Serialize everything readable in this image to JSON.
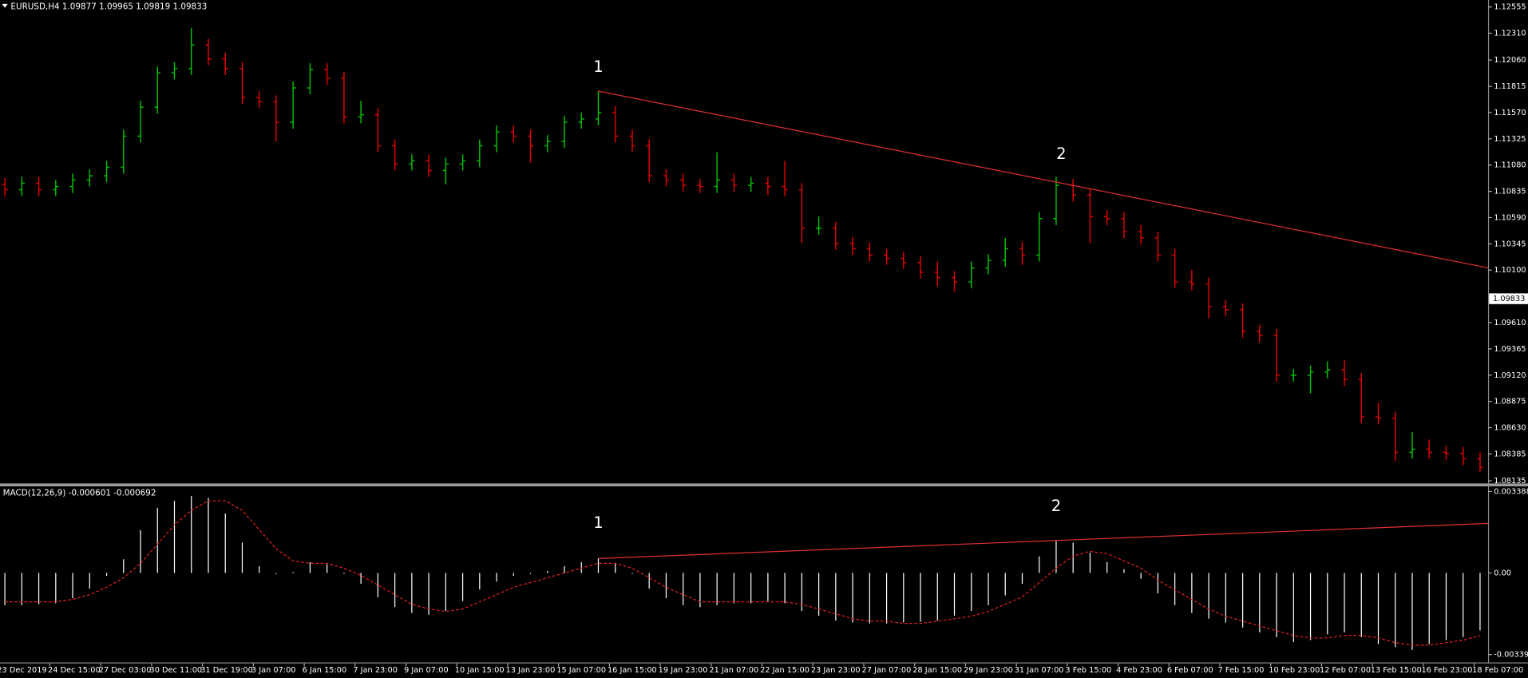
{
  "chart_data": [
    {
      "type": "ohlc",
      "title": "EURUSD,H4  1.09877 1.09965 1.09819 1.09833",
      "categories": [
        "23 Dec 2019",
        null,
        null,
        "24 Dec 15:00",
        null,
        null,
        "27 Dec 03:00",
        null,
        null,
        "30 Dec 11:00",
        null,
        null,
        "31 Dec 19:00",
        null,
        null,
        "3 Jan 07:00",
        null,
        null,
        "6 Jan 15:00",
        null,
        null,
        "7 Jan 23:00",
        null,
        null,
        "9 Jan 07:00",
        null,
        null,
        "10 Jan 15:00",
        null,
        null,
        "13 Jan 23:00",
        null,
        null,
        "15 Jan 07:00",
        null,
        null,
        "16 Jan 15:00",
        null,
        null,
        "19 Jan 23:00",
        null,
        null,
        "21 Jan 07:00",
        null,
        null,
        "22 Jan 15:00",
        null,
        null,
        "23 Jan 23:00",
        null,
        null,
        "27 Jan 07:00",
        null,
        null,
        "28 Jan 15:00",
        null,
        null,
        "29 Jan 23:00",
        null,
        null,
        "31 Jan 07:00",
        null,
        null,
        "3 Feb 15:00",
        null,
        null,
        "4 Feb 23:00",
        null,
        null,
        "6 Feb 07:00",
        null,
        null,
        "7 Feb 15:00",
        null,
        null,
        "10 Feb 23:00",
        null,
        null,
        "12 Feb 07:00",
        null,
        null,
        "13 Feb 15:00",
        null,
        null,
        "16 Feb 23:00",
        null,
        null,
        "18 Feb 07:00"
      ],
      "open": [
        1.109,
        1.1085,
        1.1091,
        1.1085,
        1.1088,
        1.1094,
        1.1098,
        1.1106,
        1.1135,
        1.1162,
        1.1194,
        1.1198,
        1.122,
        1.1207,
        1.1198,
        1.1171,
        1.1167,
        1.1148,
        1.118,
        1.1197,
        1.1189,
        1.1153,
        1.1155,
        1.1126,
        1.1109,
        1.1112,
        1.1103,
        1.1109,
        1.1112,
        1.1126,
        1.1139,
        1.1135,
        1.1126,
        1.113,
        1.1148,
        1.1151,
        1.1157,
        1.1135,
        1.1126,
        1.1098,
        1.1094,
        1.1089,
        1.1088,
        1.1094,
        1.1089,
        1.1091,
        1.1088,
        1.1085,
        1.1049,
        1.1049,
        1.1035,
        1.103,
        1.1024,
        1.1021,
        1.1017,
        1.1008,
        1.1003,
        1.0999,
        1.1012,
        1.1019,
        1.103,
        1.1024,
        1.1058,
        1.1089,
        1.108,
        1.106,
        1.1058,
        1.1046,
        1.104,
        1.1024,
        1.0999,
        1.0997,
        1.0976,
        1.0973,
        1.0953,
        1.0949,
        1.0912,
        1.0912,
        1.0915,
        1.0917,
        1.0908,
        1.0873,
        1.0872,
        1.084,
        1.0843,
        1.084,
        1.0839,
        1.0834
      ],
      "high": [
        1.1096,
        1.1097,
        1.1097,
        1.1094,
        1.11,
        1.1104,
        1.1112,
        1.1141,
        1.1168,
        1.12,
        1.1204,
        1.1236,
        1.1226,
        1.1213,
        1.1204,
        1.1177,
        1.1173,
        1.1186,
        1.1203,
        1.1203,
        1.1195,
        1.1168,
        1.1161,
        1.1132,
        1.1118,
        1.1118,
        1.1115,
        1.1118,
        1.1132,
        1.1145,
        1.1145,
        1.1141,
        1.1136,
        1.1154,
        1.1157,
        1.1177,
        1.1163,
        1.1141,
        1.1132,
        1.1104,
        1.11,
        1.1095,
        1.112,
        1.11,
        1.1097,
        1.1097,
        1.1112,
        1.1091,
        1.106,
        1.1055,
        1.1041,
        1.1036,
        1.103,
        1.1027,
        1.1023,
        1.1018,
        1.1009,
        1.1018,
        1.1025,
        1.104,
        1.1036,
        1.1064,
        1.1097,
        1.1095,
        1.1086,
        1.1066,
        1.1064,
        1.1052,
        1.1046,
        1.103,
        1.101,
        1.1003,
        1.0982,
        1.0979,
        1.0959,
        1.0955,
        1.0918,
        1.0921,
        1.0925,
        1.0926,
        1.0914,
        1.0886,
        1.0878,
        1.0859,
        1.0852,
        1.0846,
        1.0845,
        1.084
      ],
      "low": [
        1.1079,
        1.1079,
        1.1079,
        1.1079,
        1.1082,
        1.1088,
        1.1092,
        1.11,
        1.1129,
        1.1156,
        1.1188,
        1.1192,
        1.1201,
        1.1192,
        1.1165,
        1.1161,
        1.113,
        1.1142,
        1.1174,
        1.1183,
        1.1147,
        1.1147,
        1.112,
        1.1103,
        1.1103,
        1.1097,
        1.109,
        1.1103,
        1.1106,
        1.112,
        1.1129,
        1.111,
        1.112,
        1.1124,
        1.1142,
        1.1145,
        1.1129,
        1.112,
        1.1092,
        1.1088,
        1.1083,
        1.1082,
        1.1082,
        1.1083,
        1.1083,
        1.108,
        1.1079,
        1.1035,
        1.1043,
        1.1029,
        1.1024,
        1.1018,
        1.1015,
        1.1011,
        1.1002,
        1.0995,
        1.099,
        1.0993,
        1.1006,
        1.1013,
        1.1015,
        1.1018,
        1.1052,
        1.1074,
        1.1035,
        1.1052,
        1.104,
        1.1034,
        1.1018,
        1.0993,
        1.0991,
        1.0965,
        1.0967,
        1.0947,
        1.0943,
        1.0906,
        1.0906,
        1.0895,
        1.0909,
        1.0902,
        1.0867,
        1.0866,
        1.0832,
        1.0834,
        1.0834,
        1.0833,
        1.0828,
        1.0822
      ],
      "close": [
        1.1085,
        1.1091,
        1.1085,
        1.1088,
        1.1094,
        1.1098,
        1.1106,
        1.1135,
        1.1162,
        1.1194,
        1.1198,
        1.122,
        1.1207,
        1.1198,
        1.1171,
        1.1167,
        1.1148,
        1.118,
        1.1197,
        1.1189,
        1.1153,
        1.1155,
        1.1126,
        1.1109,
        1.1112,
        1.1103,
        1.1109,
        1.1112,
        1.1126,
        1.1139,
        1.1135,
        1.1126,
        1.113,
        1.1148,
        1.1151,
        1.1157,
        1.1135,
        1.1126,
        1.1098,
        1.1094,
        1.1089,
        1.1088,
        1.1094,
        1.1089,
        1.1091,
        1.1088,
        1.1085,
        1.1049,
        1.1049,
        1.1035,
        1.103,
        1.1024,
        1.1021,
        1.1017,
        1.1008,
        1.1003,
        1.0999,
        1.1012,
        1.1019,
        1.103,
        1.1024,
        1.1058,
        1.1089,
        1.108,
        1.106,
        1.1058,
        1.1046,
        1.104,
        1.1024,
        1.0999,
        1.0997,
        1.0976,
        1.0973,
        1.0953,
        1.0949,
        1.0912,
        1.0912,
        1.0915,
        1.0917,
        1.0908,
        1.0873,
        1.0872,
        1.084,
        1.0843,
        1.084,
        1.0839,
        1.0834,
        1.0826
      ],
      "up_color": "#00c000",
      "down_color": "#e00000",
      "ylim": [
        1.0811,
        1.1262
      ],
      "yticks": [
        1.12555,
        {
          "value": 1.1231,
          "label": "1.12310"
        },
        {
          "value": 1.1206,
          "label": "1.12060"
        },
        1.11815,
        {
          "value": 1.1157,
          "label": "1.11570"
        },
        1.11325,
        {
          "value": 1.1108,
          "label": "1.11080"
        },
        1.10835,
        {
          "value": 1.1059,
          "label": "1.10590"
        },
        1.10345,
        {
          "value": 1.101,
          "label": "1.10100"
        },
        {
          "value": 1.0961,
          "label": "1.09610"
        },
        1.09365,
        {
          "value": 1.0912,
          "label": "1.09120"
        },
        1.08875,
        {
          "value": 1.0863,
          "label": "1.08630"
        },
        1.08385,
        1.08135
      ],
      "current_price": 1.09833,
      "trendline": {
        "x": [
          35,
          87.5
        ],
        "y": [
          1.1177,
          1.1012
        ],
        "color": "#e03030"
      },
      "annotations": [
        {
          "text": "1",
          "x": 35,
          "y": 1.1188
        },
        {
          "text": "2",
          "x": 62.3,
          "y": 1.1107
        }
      ]
    },
    {
      "type": "macd",
      "title": "MACD(12,26,9) -0.000601 -0.000692",
      "histogram": {
        "color": "#ffffff",
        "values": [
          -0.00134,
          -0.00134,
          -0.0013,
          -0.00126,
          -0.00105,
          -0.00065,
          -0.00012,
          0.00057,
          0.00178,
          0.00271,
          0.003,
          0.0032,
          0.00312,
          0.00247,
          0.00126,
          0.00028,
          -4e-05,
          4e-05,
          0.00045,
          0.00036,
          -4e-05,
          -0.00045,
          -0.00101,
          -0.00142,
          -0.00166,
          -0.00174,
          -0.00158,
          -0.00117,
          -0.00069,
          -0.00036,
          -0.00012,
          -4e-05,
          8e-05,
          0.00028,
          0.00045,
          0.00061,
          0.0004,
          -4e-05,
          -0.00065,
          -0.00105,
          -0.00134,
          -0.00142,
          -0.00134,
          -0.00126,
          -0.00126,
          -0.00117,
          -0.00126,
          -0.00158,
          -0.00178,
          -0.00198,
          -0.00206,
          -0.0021,
          -0.0021,
          -0.00206,
          -0.00202,
          -0.00198,
          -0.00178,
          -0.00158,
          -0.00134,
          -0.00093,
          -0.00045,
          0.00069,
          0.00134,
          0.00126,
          0.00085,
          0.00045,
          0.00016,
          -0.00024,
          -0.00085,
          -0.00134,
          -0.00166,
          -0.0019,
          -0.00206,
          -0.00227,
          -0.00247,
          -0.00267,
          -0.00287,
          -0.00279,
          -0.00255,
          -0.00247,
          -0.00267,
          -0.00296,
          -0.00308,
          -0.0032,
          -0.00296,
          -0.00279,
          -0.00267,
          -0.00239
        ]
      },
      "signal": {
        "color": "#e02020",
        "values": [
          -0.0012,
          -0.0012,
          -0.0012,
          -0.0012,
          -0.0011,
          -0.0009,
          -0.0006,
          -0.0002,
          0.0004,
          0.0012,
          0.002,
          0.0026,
          0.003,
          0.003,
          0.0026,
          0.0018,
          0.001,
          0.0005,
          0.0004,
          0.0004,
          0.0002,
          -0.0001,
          -0.0005,
          -0.0009,
          -0.0013,
          -0.0015,
          -0.0016,
          -0.0015,
          -0.0012,
          -0.0009,
          -0.0006,
          -0.0004,
          -0.0002,
          0,
          0.0002,
          0.0004,
          0.0004,
          0.0002,
          -0.0002,
          -0.0006,
          -0.0009,
          -0.0012,
          -0.0012,
          -0.0012,
          -0.0012,
          -0.0012,
          -0.0012,
          -0.0013,
          -0.0015,
          -0.0017,
          -0.0019,
          -0.002,
          -0.002,
          -0.0021,
          -0.0021,
          -0.002,
          -0.0019,
          -0.0018,
          -0.0016,
          -0.0013,
          -0.001,
          -0.0004,
          0.0002,
          0.0007,
          0.0009,
          0.0008,
          0.0005,
          0.0002,
          -0.0003,
          -0.0007,
          -0.0011,
          -0.0015,
          -0.0018,
          -0.002,
          -0.0022,
          -0.0024,
          -0.0026,
          -0.0027,
          -0.0027,
          -0.0026,
          -0.0026,
          -0.0027,
          -0.0029,
          -0.003,
          -0.003,
          -0.0029,
          -0.0028,
          -0.0026
        ]
      },
      "ylim": [
        -0.00368,
        0.0036
      ],
      "yticks": [
        0.003388,
        {
          "value": 0,
          "label": "0.00"
        },
        -0.003393
      ],
      "trendline": {
        "x": [
          35,
          87.5
        ],
        "y": [
          0.0006,
          0.00206
        ],
        "color": "#e03030"
      },
      "annotations": [
        {
          "text": "1",
          "x": 35,
          "y": 0.00158
        },
        {
          "text": "2",
          "x": 62,
          "y": 0.00227
        }
      ]
    }
  ]
}
